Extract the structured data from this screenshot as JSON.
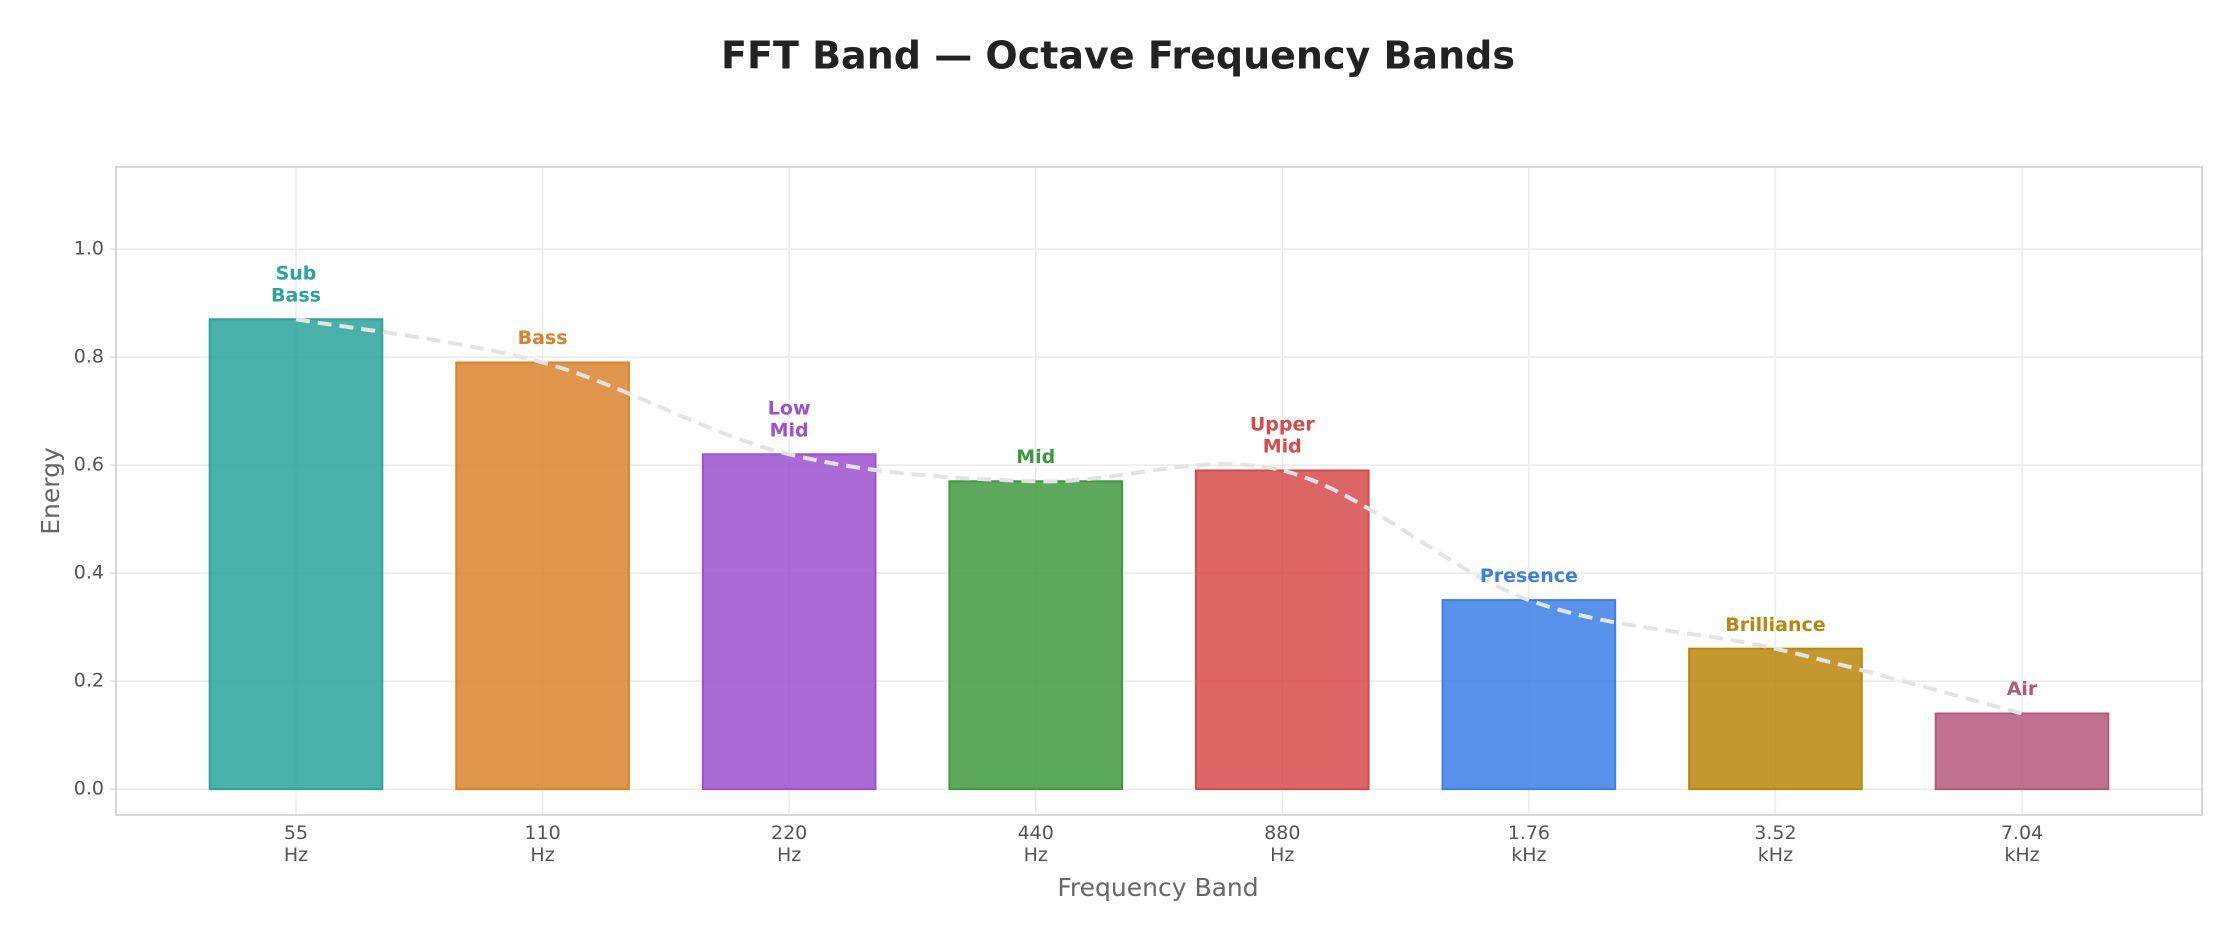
{
  "chart_data": {
    "type": "bar",
    "title": "FFT Band — Octave Frequency Bands",
    "xlabel": "Frequency Band",
    "ylabel": "Energy",
    "categories": [
      "55\nHz",
      "110\nHz",
      "220\nHz",
      "440\nHz",
      "880\nHz",
      "1.76\nkHz",
      "3.52\nkHz",
      "7.04\nkHz"
    ],
    "values": [
      0.87,
      0.79,
      0.62,
      0.57,
      0.59,
      0.35,
      0.26,
      0.14
    ],
    "labels": [
      "Sub\nBass",
      "Bass",
      "Low\nMid",
      "Mid",
      "Upper\nMid",
      "Presence",
      "Brilliance",
      "Air"
    ],
    "colors": [
      "#2aa39b",
      "#d9822b",
      "#9b51d0",
      "#3f9a3f",
      "#d64a4a",
      "#3b7fe8",
      "#b8860b",
      "#b4587a"
    ],
    "ylim": [
      -0.048,
      1.152
    ],
    "yticks": [
      {
        "value": 0,
        "label": "0.0"
      },
      {
        "value": 0.2,
        "label": "0.2"
      },
      {
        "value": 0.4,
        "label": "0.4"
      },
      {
        "value": 0.6,
        "label": "0.6"
      },
      {
        "value": 0.8,
        "label": "0.8"
      },
      {
        "value": 1.0,
        "label": "1.0"
      }
    ],
    "grid": true,
    "trend_line": true
  }
}
